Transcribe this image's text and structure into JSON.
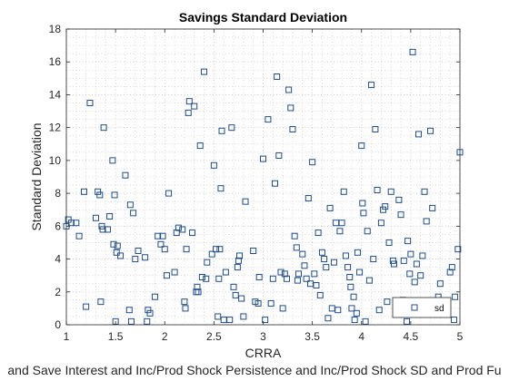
{
  "chart_data": {
    "type": "scatter",
    "title": "Savings Standard Deviation",
    "xlabel": "CRRA",
    "ylabel": "Standard Deviation",
    "caption": "and Save Interest and Inc/Prod Shock Persistence and Inc/Prod Shock SD and Prod Fu",
    "xlim": [
      1,
      5
    ],
    "ylim": [
      0,
      18
    ],
    "xticks": [
      "1",
      "1.5",
      "2",
      "2.5",
      "3",
      "3.5",
      "4",
      "4.5",
      "5"
    ],
    "yticks": [
      "0",
      "2",
      "4",
      "6",
      "8",
      "10",
      "12",
      "14",
      "16",
      "18"
    ],
    "grid": true,
    "minor_grid": true,
    "legend": {
      "location": "bottom-right",
      "entries": [
        "sd"
      ]
    },
    "marker": "square",
    "series": [
      {
        "name": "sd",
        "color": "#1f4e8c",
        "points": [
          [
            1.0,
            6.0
          ],
          [
            1.02,
            6.4
          ],
          [
            1.05,
            6.2
          ],
          [
            1.1,
            6.2
          ],
          [
            1.13,
            5.4
          ],
          [
            1.18,
            8.1
          ],
          [
            1.2,
            1.1
          ],
          [
            1.24,
            13.5
          ],
          [
            1.3,
            6.5
          ],
          [
            1.32,
            8.1
          ],
          [
            1.34,
            7.9
          ],
          [
            1.35,
            1.4
          ],
          [
            1.36,
            6.0
          ],
          [
            1.37,
            5.8
          ],
          [
            1.38,
            12.0
          ],
          [
            1.42,
            5.8
          ],
          [
            1.44,
            6.6
          ],
          [
            1.47,
            10.0
          ],
          [
            1.48,
            4.9
          ],
          [
            1.49,
            7.9
          ],
          [
            1.5,
            0.2
          ],
          [
            1.51,
            4.4
          ],
          [
            1.52,
            4.8
          ],
          [
            1.55,
            4.2
          ],
          [
            1.6,
            9.1
          ],
          [
            1.64,
            0.9
          ],
          [
            1.65,
            7.3
          ],
          [
            1.66,
            0.2
          ],
          [
            1.68,
            6.8
          ],
          [
            1.7,
            4.0
          ],
          [
            1.73,
            4.5
          ],
          [
            1.8,
            4.1
          ],
          [
            1.82,
            0.2
          ],
          [
            1.83,
            0.9
          ],
          [
            1.85,
            0.7
          ],
          [
            1.9,
            1.7
          ],
          [
            1.93,
            5.4
          ],
          [
            1.96,
            4.9
          ],
          [
            1.98,
            5.4
          ],
          [
            2.0,
            4.6
          ],
          [
            2.02,
            3.0
          ],
          [
            2.04,
            8.0
          ],
          [
            2.1,
            3.2
          ],
          [
            2.12,
            5.6
          ],
          [
            2.14,
            5.9
          ],
          [
            2.18,
            5.8
          ],
          [
            2.2,
            1.4
          ],
          [
            2.21,
            1.0
          ],
          [
            2.22,
            4.6
          ],
          [
            2.24,
            12.9
          ],
          [
            2.25,
            13.6
          ],
          [
            2.28,
            5.6
          ],
          [
            2.3,
            13.3
          ],
          [
            2.32,
            2.0
          ],
          [
            2.33,
            2.3
          ],
          [
            2.34,
            2.0
          ],
          [
            2.36,
            10.9
          ],
          [
            2.38,
            2.9
          ],
          [
            2.4,
            15.4
          ],
          [
            2.42,
            2.8
          ],
          [
            2.43,
            3.8
          ],
          [
            2.48,
            4.3
          ],
          [
            2.5,
            9.7
          ],
          [
            2.52,
            4.6
          ],
          [
            2.54,
            0.5
          ],
          [
            2.55,
            2.8
          ],
          [
            2.56,
            4.6
          ],
          [
            2.57,
            8.3
          ],
          [
            2.58,
            11.8
          ],
          [
            2.6,
            0.3
          ],
          [
            2.62,
            3.2
          ],
          [
            2.66,
            0.3
          ],
          [
            2.68,
            12.0
          ],
          [
            2.7,
            2.3
          ],
          [
            2.72,
            1.8
          ],
          [
            2.74,
            3.5
          ],
          [
            2.75,
            3.9
          ],
          [
            2.76,
            4.2
          ],
          [
            2.78,
            1.6
          ],
          [
            2.8,
            0.5
          ],
          [
            2.82,
            7.5
          ],
          [
            2.9,
            4.5
          ],
          [
            2.92,
            1.4
          ],
          [
            2.95,
            1.3
          ],
          [
            2.96,
            2.9
          ],
          [
            3.0,
            10.1
          ],
          [
            3.02,
            0.3
          ],
          [
            3.05,
            12.5
          ],
          [
            3.08,
            1.3
          ],
          [
            3.1,
            2.8
          ],
          [
            3.12,
            8.6
          ],
          [
            3.14,
            15.1
          ],
          [
            3.16,
            10.3
          ],
          [
            3.18,
            3.2
          ],
          [
            3.2,
            1.0
          ],
          [
            3.22,
            3.1
          ],
          [
            3.24,
            2.8
          ],
          [
            3.26,
            14.3
          ],
          [
            3.28,
            13.2
          ],
          [
            3.3,
            11.9
          ],
          [
            3.32,
            5.4
          ],
          [
            3.34,
            4.7
          ],
          [
            3.35,
            2.7
          ],
          [
            3.36,
            3.1
          ],
          [
            3.4,
            4.3
          ],
          [
            3.42,
            3.6
          ],
          [
            3.44,
            2.8
          ],
          [
            3.46,
            7.7
          ],
          [
            3.48,
            2.5
          ],
          [
            3.5,
            9.9
          ],
          [
            3.52,
            3.1
          ],
          [
            3.54,
            2.4
          ],
          [
            3.56,
            5.6
          ],
          [
            3.58,
            1.8
          ],
          [
            3.6,
            4.4
          ],
          [
            3.62,
            4.0
          ],
          [
            3.64,
            3.5
          ],
          [
            3.66,
            0.4
          ],
          [
            3.68,
            7.1
          ],
          [
            3.7,
            1.0
          ],
          [
            3.72,
            3.8
          ],
          [
            3.74,
            6.2
          ],
          [
            3.76,
            0.9
          ],
          [
            3.78,
            5.7
          ],
          [
            3.8,
            6.2
          ],
          [
            3.82,
            8.1
          ],
          [
            3.84,
            4.2
          ],
          [
            3.86,
            3.5
          ],
          [
            3.88,
            2.9
          ],
          [
            3.89,
            2.3
          ],
          [
            3.9,
            1.0
          ],
          [
            3.92,
            1.7
          ],
          [
            3.93,
            0.3
          ],
          [
            3.95,
            0.7
          ],
          [
            3.96,
            4.4
          ],
          [
            3.98,
            3.2
          ],
          [
            4.0,
            10.9
          ],
          [
            4.01,
            7.4
          ],
          [
            4.02,
            6.8
          ],
          [
            4.04,
            0.2
          ],
          [
            4.06,
            5.7
          ],
          [
            4.08,
            2.7
          ],
          [
            4.1,
            14.6
          ],
          [
            4.12,
            4.0
          ],
          [
            4.14,
            11.9
          ],
          [
            4.16,
            8.2
          ],
          [
            4.18,
            0.9
          ],
          [
            4.2,
            6.2
          ],
          [
            4.22,
            7.0
          ],
          [
            4.24,
            7.2
          ],
          [
            4.26,
            1.4
          ],
          [
            4.28,
            5.0
          ],
          [
            4.3,
            8.1
          ],
          [
            4.32,
            3.9
          ],
          [
            4.33,
            3.7
          ],
          [
            4.35,
            0.7
          ],
          [
            4.37,
            1.3
          ],
          [
            4.38,
            7.6
          ],
          [
            4.4,
            6.7
          ],
          [
            4.42,
            1.5
          ],
          [
            4.43,
            3.9
          ],
          [
            4.45,
            1.0
          ],
          [
            4.46,
            0.2
          ],
          [
            4.47,
            5.1
          ],
          [
            4.49,
            3.1
          ],
          [
            4.5,
            4.3
          ],
          [
            4.52,
            16.6
          ],
          [
            4.54,
            2.6
          ],
          [
            4.56,
            3.7
          ],
          [
            4.58,
            11.6
          ],
          [
            4.6,
            3.0
          ],
          [
            4.62,
            4.2
          ],
          [
            4.64,
            8.1
          ],
          [
            4.66,
            6.3
          ],
          [
            4.7,
            11.8
          ],
          [
            4.72,
            7.1
          ],
          [
            4.74,
            0.9
          ],
          [
            4.78,
            1.7
          ],
          [
            4.8,
            2.5
          ],
          [
            4.9,
            3.2
          ],
          [
            4.92,
            3.5
          ],
          [
            4.94,
            0.3
          ],
          [
            4.95,
            1.7
          ],
          [
            4.98,
            4.6
          ],
          [
            5.0,
            10.5
          ]
        ]
      }
    ]
  }
}
